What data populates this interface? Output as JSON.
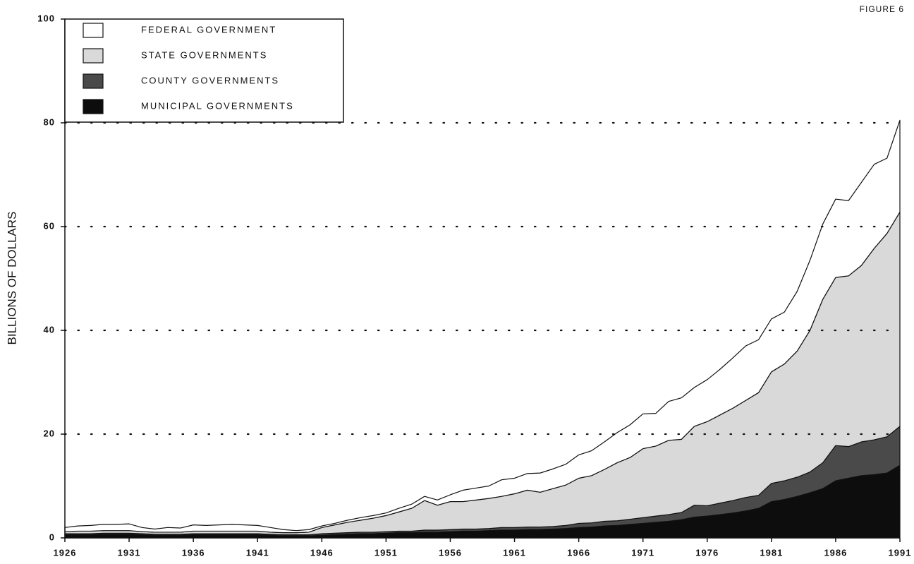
{
  "chart_data": {
    "type": "stacked_area",
    "annotation": "FIGURE 6",
    "y_label": "BILLIONS OF DOLLARS",
    "x": [
      1926,
      1927,
      1928,
      1929,
      1930,
      1931,
      1932,
      1933,
      1934,
      1935,
      1936,
      1937,
      1938,
      1939,
      1940,
      1941,
      1942,
      1943,
      1944,
      1945,
      1946,
      1947,
      1948,
      1949,
      1950,
      1951,
      1952,
      1953,
      1954,
      1955,
      1956,
      1957,
      1958,
      1959,
      1960,
      1961,
      1962,
      1963,
      1964,
      1965,
      1966,
      1967,
      1968,
      1969,
      1970,
      1971,
      1972,
      1973,
      1974,
      1975,
      1976,
      1977,
      1978,
      1979,
      1980,
      1981,
      1982,
      1983,
      1984,
      1985,
      1986,
      1987,
      1988,
      1989,
      1990,
      1991
    ],
    "xlim": [
      1926,
      1991
    ],
    "xticks": [
      1926,
      1931,
      1936,
      1941,
      1946,
      1951,
      1956,
      1961,
      1966,
      1971,
      1976,
      1981,
      1986,
      1991
    ],
    "ylim": [
      0,
      100
    ],
    "yticks": [
      0,
      20,
      40,
      60,
      80,
      100
    ],
    "grid": true,
    "legend": "top-left",
    "series": [
      {
        "name": "FEDERAL GOVERNMENT",
        "color": "#ffffff",
        "values": [
          0.8,
          1.0,
          1.1,
          1.2,
          1.2,
          1.3,
          0.8,
          0.6,
          0.9,
          0.8,
          1.2,
          1.1,
          1.2,
          1.3,
          1.2,
          1.1,
          0.9,
          0.6,
          0.4,
          0.5,
          0.3,
          0.3,
          0.4,
          0.5,
          0.5,
          0.5,
          0.7,
          0.8,
          0.8,
          1.0,
          1.3,
          2.2,
          2.3,
          2.4,
          3.2,
          3.0,
          3.2,
          3.7,
          3.8,
          4.0,
          4.5,
          4.8,
          5.3,
          5.8,
          6.3,
          6.7,
          6.3,
          7.5,
          8.0,
          7.5,
          8.1,
          8.8,
          9.7,
          10.5,
          10.2,
          10.2,
          10.0,
          11.5,
          13.5,
          14.5,
          15.1,
          14.5,
          16.0,
          16.2,
          14.5,
          17.7
        ]
      },
      {
        "name": "STATE GOVERNMENTS",
        "color": "#d9d9d9",
        "values": [
          0.4,
          0.5,
          0.5,
          0.5,
          0.5,
          0.5,
          0.4,
          0.4,
          0.4,
          0.4,
          0.5,
          0.5,
          0.5,
          0.5,
          0.5,
          0.5,
          0.4,
          0.4,
          0.4,
          0.5,
          1.2,
          1.6,
          2.0,
          2.3,
          2.7,
          3.1,
          3.7,
          4.4,
          5.7,
          4.8,
          5.4,
          5.3,
          5.6,
          5.8,
          6.0,
          6.5,
          7.1,
          6.7,
          7.3,
          7.8,
          8.7,
          9.1,
          10.0,
          11.2,
          11.9,
          13.3,
          13.5,
          14.3,
          14.1,
          15.2,
          16.2,
          17.0,
          17.8,
          18.7,
          19.8,
          21.5,
          22.5,
          24.3,
          27.3,
          31.5,
          32.4,
          32.9,
          34.0,
          36.9,
          39.2,
          41.3
        ]
      },
      {
        "name": "COUNTY GOVERNMENTS",
        "color": "#4a4a4a",
        "values": [
          0.2,
          0.2,
          0.2,
          0.2,
          0.2,
          0.2,
          0.2,
          0.2,
          0.2,
          0.2,
          0.2,
          0.2,
          0.2,
          0.2,
          0.2,
          0.2,
          0.2,
          0.2,
          0.2,
          0.2,
          0.3,
          0.3,
          0.3,
          0.3,
          0.3,
          0.3,
          0.3,
          0.3,
          0.4,
          0.4,
          0.4,
          0.4,
          0.4,
          0.4,
          0.5,
          0.5,
          0.5,
          0.5,
          0.5,
          0.6,
          0.8,
          0.8,
          0.9,
          0.9,
          1.0,
          1.1,
          1.2,
          1.3,
          1.4,
          2.3,
          2.0,
          2.2,
          2.4,
          2.6,
          2.5,
          3.5,
          3.6,
          3.7,
          4.0,
          5.0,
          6.8,
          6.1,
          6.5,
          6.7,
          7.0,
          7.5
        ]
      },
      {
        "name": "MUNICIPAL GOVERNMENTS",
        "color": "#0d0d0d",
        "values": [
          0.6,
          0.6,
          0.6,
          0.7,
          0.7,
          0.7,
          0.6,
          0.5,
          0.5,
          0.5,
          0.6,
          0.6,
          0.6,
          0.6,
          0.6,
          0.6,
          0.5,
          0.4,
          0.4,
          0.4,
          0.5,
          0.6,
          0.7,
          0.8,
          0.8,
          0.9,
          1.0,
          1.0,
          1.1,
          1.1,
          1.2,
          1.3,
          1.3,
          1.4,
          1.5,
          1.5,
          1.6,
          1.6,
          1.7,
          1.8,
          2.0,
          2.1,
          2.3,
          2.4,
          2.6,
          2.8,
          3.0,
          3.2,
          3.5,
          4.0,
          4.2,
          4.5,
          4.8,
          5.2,
          5.7,
          7.0,
          7.4,
          8.0,
          8.7,
          9.5,
          11.0,
          11.5,
          12.0,
          12.2,
          12.5,
          14.0
        ]
      }
    ]
  }
}
